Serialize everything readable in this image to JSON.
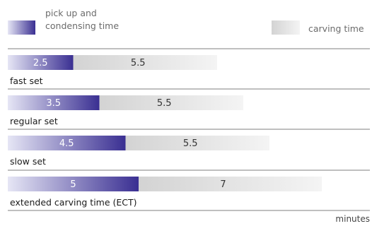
{
  "chart_data": {
    "type": "bar",
    "stacked": true,
    "orientation": "horizontal",
    "categories": [
      "fast set",
      "regular set",
      "slow set",
      "extended carving time (ECT)"
    ],
    "series": [
      {
        "name": "pick up and condensing time",
        "values": [
          2.5,
          3.5,
          4.5,
          5
        ]
      },
      {
        "name": "carving time",
        "values": [
          5.5,
          5.5,
          5.5,
          7
        ]
      }
    ],
    "value_labels": [
      [
        "2.5",
        "5.5"
      ],
      [
        "3.5",
        "5.5"
      ],
      [
        "4.5",
        "5.5"
      ],
      [
        "5",
        "7"
      ]
    ],
    "xlabel": "minutes",
    "xlim": [
      0,
      12
    ],
    "legend": {
      "placement": "top",
      "entries": [
        "pick up and\ncondensing time",
        "carving time"
      ]
    },
    "colors": {
      "series1_start": "#e6e6f5",
      "series1_end": "#3a2f92",
      "series2_start": "#d3d3d3",
      "series2_end": "#f4f4f4",
      "separator": "#7f7f7f"
    }
  }
}
